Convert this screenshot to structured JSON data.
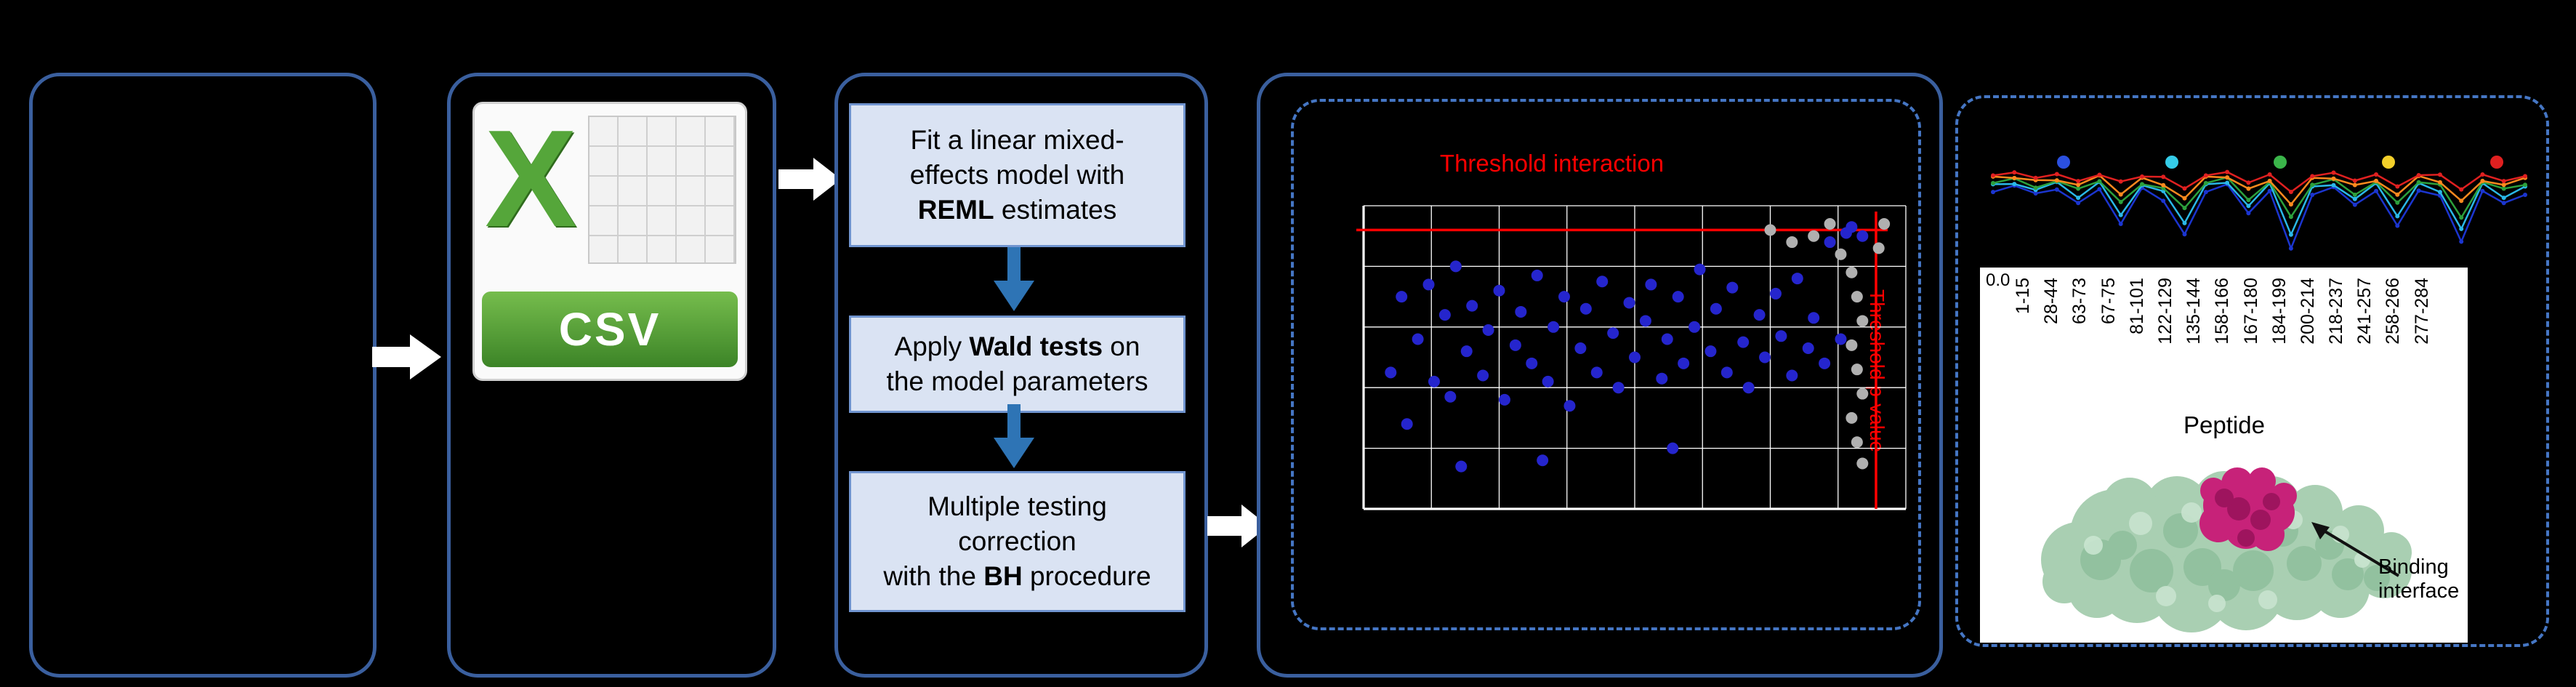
{
  "colors": {
    "panel_border": "#3a5f9e",
    "dashed_border": "#4576c4",
    "step_fill": "#dae3f3",
    "step_border": "#7094cf",
    "arrow_blue": "#2e74b5",
    "threshold_red": "#ff0000",
    "csv_green": "#55a63a",
    "protein_green": "#a9cfb2",
    "binding_magenta": "#c72279"
  },
  "csv": {
    "logo_letter": "X",
    "banner": "CSV"
  },
  "pipeline": {
    "steps": [
      {
        "lines": [
          [
            {
              "t": "Fit a linear mixed-"
            }
          ],
          [
            {
              "t": "effects model with"
            }
          ],
          [
            {
              "t": "REML",
              "b": true
            },
            {
              "t": " estimates"
            }
          ]
        ]
      },
      {
        "lines": [
          [
            {
              "t": "Apply "
            },
            {
              "t": "Wald tests",
              "b": true
            },
            {
              "t": " on"
            }
          ],
          [
            {
              "t": "the model parameters"
            }
          ]
        ]
      },
      {
        "lines": [
          [
            {
              "t": "Multiple testing"
            }
          ],
          [
            {
              "t": "correction"
            }
          ],
          [
            {
              "t": "with the "
            },
            {
              "t": "BH",
              "b": true
            },
            {
              "t": " procedure"
            }
          ]
        ]
      }
    ]
  },
  "volcano": {
    "title": "Threshold interaction",
    "side_label": "Threshold p-value"
  },
  "uptake": {
    "y_min_label": "0.0",
    "xlabel": "Peptide",
    "annotation": "Binding interface"
  },
  "chart_data": [
    {
      "type": "scatter",
      "title": "Threshold interaction",
      "right_label": "Threshold p-value",
      "grid": {
        "v_step_frac": 0.125,
        "h_step_frac": 0.2
      },
      "threshold_h_frac": 0.08,
      "threshold_v_frac": 0.945,
      "series": [
        {
          "name": "blue-points",
          "color": "#2525cd",
          "points": [
            [
              5,
              55
            ],
            [
              7,
              30
            ],
            [
              8,
              72
            ],
            [
              10,
              44
            ],
            [
              12,
              26
            ],
            [
              13,
              58
            ],
            [
              15,
              36
            ],
            [
              16,
              63
            ],
            [
              17,
              20
            ],
            [
              19,
              48
            ],
            [
              20,
              33
            ],
            [
              22,
              56
            ],
            [
              23,
              41
            ],
            [
              25,
              28
            ],
            [
              26,
              64
            ],
            [
              28,
              46
            ],
            [
              29,
              35
            ],
            [
              31,
              52
            ],
            [
              32,
              23
            ],
            [
              34,
              58
            ],
            [
              35,
              40
            ],
            [
              37,
              30
            ],
            [
              38,
              66
            ],
            [
              40,
              47
            ],
            [
              41,
              34
            ],
            [
              43,
              55
            ],
            [
              44,
              25
            ],
            [
              46,
              42
            ],
            [
              47,
              60
            ],
            [
              49,
              32
            ],
            [
              50,
              50
            ],
            [
              52,
              38
            ],
            [
              53,
              26
            ],
            [
              55,
              57
            ],
            [
              56,
              44
            ],
            [
              58,
              30
            ],
            [
              59,
              52
            ],
            [
              61,
              40
            ],
            [
              62,
              21
            ],
            [
              64,
              48
            ],
            [
              65,
              34
            ],
            [
              67,
              55
            ],
            [
              68,
              27
            ],
            [
              70,
              45
            ],
            [
              71,
              60
            ],
            [
              73,
              36
            ],
            [
              74,
              50
            ],
            [
              76,
              29
            ],
            [
              77,
              43
            ],
            [
              79,
              56
            ],
            [
              80,
              24
            ],
            [
              82,
              47
            ],
            [
              83,
              37
            ],
            [
              85,
              52
            ],
            [
              86,
              12
            ],
            [
              88,
              44
            ],
            [
              89,
              9
            ],
            [
              92,
              10
            ],
            [
              57,
              80
            ],
            [
              33,
              84
            ],
            [
              18,
              86
            ],
            [
              90,
              7
            ]
          ]
        },
        {
          "name": "grey-points",
          "color": "#b0b0b0",
          "points": [
            [
              83,
              10
            ],
            [
              86,
              6
            ],
            [
              88,
              16
            ],
            [
              90,
              22
            ],
            [
              91,
              30
            ],
            [
              92,
              38
            ],
            [
              90,
              46
            ],
            [
              91,
              54
            ],
            [
              92,
              62
            ],
            [
              90,
              70
            ],
            [
              91,
              78
            ],
            [
              92,
              85
            ],
            [
              79,
              12
            ],
            [
              75,
              8
            ],
            [
              96,
              6
            ],
            [
              95,
              14
            ]
          ]
        }
      ]
    },
    {
      "type": "line",
      "ylabel_min": "0.0",
      "xlabel": "Peptide",
      "categories": [
        "1-15",
        "28-44",
        "63-73",
        "67-75",
        "81-101",
        "122-129",
        "135-144",
        "158-166",
        "167-180",
        "184-199",
        "200-214",
        "218-237",
        "241-257",
        "258-266",
        "277-284"
      ],
      "legend_dot_colors": [
        "#2b50e0",
        "#35cce8",
        "#3bb54a",
        "#f2cf2a",
        "#e02020"
      ],
      "base": [
        0.62,
        0.65,
        0.58,
        0.63,
        0.52,
        0.64,
        0.38,
        0.62,
        0.55,
        0.3,
        0.62,
        0.66,
        0.44,
        0.62,
        0.2,
        0.6,
        0.64,
        0.5,
        0.62,
        0.36,
        0.63,
        0.58,
        0.24,
        0.62,
        0.52,
        0.6
      ],
      "series": [
        {
          "name": "dark-blue",
          "color": "#1b35cf",
          "depth": 1.05,
          "offset": -0.05
        },
        {
          "name": "cyan",
          "color": "#2ab8e8",
          "depth": 0.85,
          "offset": -0.02
        },
        {
          "name": "green",
          "color": "#2ca03c",
          "depth": 0.65,
          "offset": 0.0
        },
        {
          "name": "orange",
          "color": "#ff8a1e",
          "depth": 0.45,
          "offset": 0.02
        },
        {
          "name": "red",
          "color": "#e02020",
          "depth": 0.25,
          "offset": 0.04
        }
      ]
    }
  ]
}
